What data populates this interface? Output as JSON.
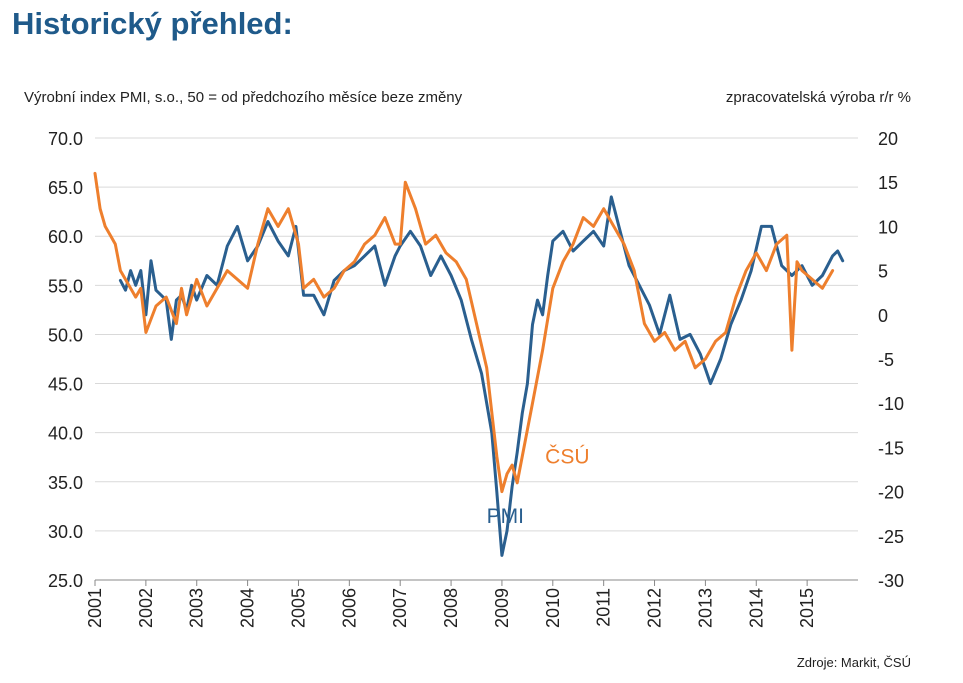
{
  "title": "Historický přehled:",
  "source": "Zdroje: Markit, ČSÚ",
  "colors": {
    "title": "#1f5a8a",
    "pmi": "#2a5f8f",
    "csu": "#ee7f2d"
  },
  "chart_data": {
    "type": "line",
    "left_axis_label": "Výrobní index PMI, s.o., 50 = od předchozího měsíce beze změny",
    "right_axis_label": "zpracovatelská výroba r/r %",
    "left_ylim": [
      25,
      70
    ],
    "right_ylim": [
      -30,
      20
    ],
    "left_ticks": [
      "70.0",
      "65.0",
      "60.0",
      "55.0",
      "50.0",
      "45.0",
      "40.0",
      "35.0",
      "30.0",
      "25.0"
    ],
    "right_ticks": [
      "20",
      "15",
      "10",
      "5",
      "0",
      "-5",
      "-10",
      "-15",
      "-20",
      "-25",
      "-30"
    ],
    "x_ticks": [
      "2001",
      "2002",
      "2003",
      "2004",
      "2005",
      "2006",
      "2007",
      "2008",
      "2009",
      "2010",
      "2011",
      "2012",
      "2013",
      "2014",
      "2015"
    ],
    "grid": true,
    "series": [
      {
        "name": "PMI",
        "axis": "left",
        "color": "#2a5f8f",
        "x": [
          2001.5,
          2001.6,
          2001.7,
          2001.8,
          2001.9,
          2002.0,
          2002.1,
          2002.2,
          2002.4,
          2002.5,
          2002.6,
          2002.7,
          2002.8,
          2002.9,
          2003.0,
          2003.2,
          2003.4,
          2003.6,
          2003.8,
          2004.0,
          2004.2,
          2004.4,
          2004.6,
          2004.8,
          2004.95,
          2005.1,
          2005.3,
          2005.5,
          2005.7,
          2005.9,
          2006.1,
          2006.3,
          2006.5,
          2006.7,
          2006.9,
          2007.0,
          2007.2,
          2007.4,
          2007.6,
          2007.8,
          2008.0,
          2008.2,
          2008.4,
          2008.6,
          2008.8,
          2008.9,
          2009.0,
          2009.1,
          2009.2,
          2009.3,
          2009.4,
          2009.5,
          2009.6,
          2009.7,
          2009.8,
          2009.9,
          2010.0,
          2010.2,
          2010.4,
          2010.6,
          2010.8,
          2011.0,
          2011.15,
          2011.3,
          2011.5,
          2011.7,
          2011.9,
          2012.1,
          2012.3,
          2012.5,
          2012.7,
          2012.9,
          2013.0,
          2013.1,
          2013.3,
          2013.5,
          2013.7,
          2013.9,
          2014.1,
          2014.3,
          2014.5,
          2014.7,
          2014.9,
          2015.1,
          2015.3,
          2015.5,
          2015.6,
          2015.7
        ],
        "values": [
          55.5,
          54.5,
          56.5,
          55,
          56.5,
          52,
          57.5,
          54.5,
          53.5,
          49.5,
          53.5,
          54,
          52.5,
          55,
          53.5,
          56,
          55,
          59,
          61,
          57.5,
          59,
          61.5,
          59.5,
          58,
          61,
          54,
          54,
          52,
          55.5,
          56.5,
          57,
          58,
          59,
          55,
          58,
          59,
          60.5,
          59,
          56,
          58,
          56,
          53.5,
          49.5,
          46,
          40,
          34,
          27.5,
          30,
          34.5,
          38,
          42,
          45,
          51,
          53.5,
          52,
          56,
          59.5,
          60.5,
          58.5,
          59.5,
          60.5,
          59,
          64,
          61,
          57,
          55,
          53,
          50,
          54,
          49.5,
          50,
          48,
          46.5,
          45,
          47.5,
          51,
          53.5,
          56.5,
          61,
          61,
          57,
          56,
          57,
          55,
          56,
          58,
          58.5,
          57.5
        ]
      },
      {
        "name": "ČSÚ",
        "axis": "right",
        "color": "#ee7f2d",
        "x": [
          2001.0,
          2001.1,
          2001.2,
          2001.3,
          2001.4,
          2001.5,
          2001.6,
          2001.7,
          2001.8,
          2001.9,
          2002.0,
          2002.2,
          2002.4,
          2002.6,
          2002.7,
          2002.8,
          2003.0,
          2003.2,
          2003.4,
          2003.6,
          2003.8,
          2004.0,
          2004.2,
          2004.4,
          2004.6,
          2004.8,
          2005.0,
          2005.1,
          2005.3,
          2005.5,
          2005.7,
          2005.9,
          2006.1,
          2006.3,
          2006.5,
          2006.7,
          2006.9,
          2007.0,
          2007.1,
          2007.3,
          2007.5,
          2007.7,
          2007.9,
          2008.1,
          2008.3,
          2008.5,
          2008.7,
          2008.9,
          2009.0,
          2009.1,
          2009.2,
          2009.3,
          2009.4,
          2009.6,
          2009.8,
          2010.0,
          2010.2,
          2010.4,
          2010.6,
          2010.8,
          2011.0,
          2011.2,
          2011.4,
          2011.6,
          2011.8,
          2012.0,
          2012.2,
          2012.4,
          2012.6,
          2012.8,
          2013.0,
          2013.2,
          2013.4,
          2013.6,
          2013.8,
          2014.0,
          2014.2,
          2014.4,
          2014.6,
          2014.7,
          2014.8,
          2014.9,
          2015.1,
          2015.3,
          2015.5
        ],
        "values": [
          16,
          12,
          10,
          9,
          8,
          5,
          4,
          3,
          2,
          3,
          -2,
          1,
          2,
          -1,
          3,
          0,
          4,
          1,
          3,
          5,
          4,
          3,
          8,
          12,
          10,
          12,
          8,
          3,
          4,
          2,
          3,
          5,
          6,
          8,
          9,
          11,
          8,
          8,
          15,
          12,
          8,
          9,
          7,
          6,
          4,
          -1,
          -6,
          -16,
          -20,
          -18,
          -17,
          -19,
          -16,
          -10,
          -4,
          3,
          6,
          8,
          11,
          10,
          12,
          10,
          8,
          5,
          -1,
          -3,
          -2,
          -4,
          -3,
          -6,
          -5,
          -3,
          -2,
          2,
          5,
          7,
          5,
          8,
          9,
          -4,
          6,
          5,
          4,
          3,
          5
        ]
      }
    ],
    "annotations": [
      {
        "text": "PMI",
        "series": "PMI",
        "x": 2008.7,
        "y": 30.8
      },
      {
        "text": "ČSÚ",
        "series": "ČSÚ",
        "x": 2009.85,
        "y": -16.8
      }
    ]
  }
}
